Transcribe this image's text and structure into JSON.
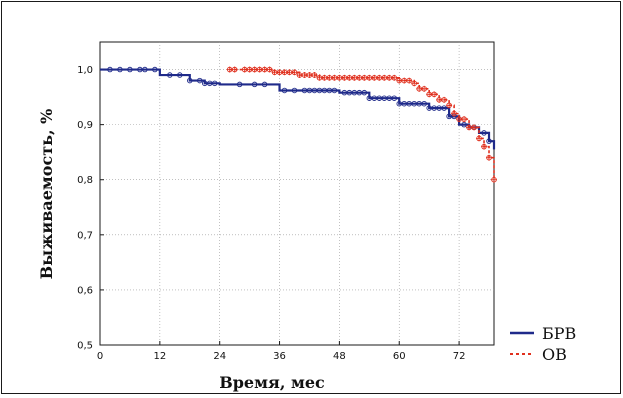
{
  "chart_data": {
    "type": "line",
    "title": "",
    "xlabel": "Время, мес",
    "ylabel": "Выживаемость, %",
    "xlim": [
      0,
      79
    ],
    "ylim": [
      0.5,
      1.05
    ],
    "x_ticks": [
      0,
      12,
      24,
      36,
      48,
      60,
      72
    ],
    "x_tick_labels": [
      "0",
      "12",
      "24",
      "36",
      "48",
      "60",
      "72"
    ],
    "y_ticks": [
      0.5,
      0.6,
      0.7,
      0.8,
      0.9,
      1.0
    ],
    "y_tick_labels": [
      "0,5",
      "0,6",
      "0,7",
      "0,8",
      "0,9",
      "1,0"
    ],
    "grid": true,
    "legend_position": "bottom-right-outside",
    "series": [
      {
        "name": "БРВ",
        "color": "#1f2a8a",
        "line_style": "solid",
        "marker": "open-circle",
        "steps": [
          [
            0,
            1.0
          ],
          [
            12,
            0.99
          ],
          [
            18,
            0.98
          ],
          [
            21,
            0.975
          ],
          [
            24,
            0.973
          ],
          [
            36,
            0.962
          ],
          [
            48,
            0.958
          ],
          [
            54,
            0.948
          ],
          [
            60,
            0.938
          ],
          [
            66,
            0.93
          ],
          [
            70,
            0.915
          ],
          [
            72,
            0.9
          ],
          [
            74,
            0.895
          ],
          [
            76,
            0.885
          ],
          [
            78,
            0.87
          ],
          [
            79,
            0.855
          ]
        ],
        "censor_x": [
          2,
          4,
          6,
          8,
          9,
          11,
          14,
          16,
          18,
          20,
          21,
          22,
          23,
          28,
          31,
          33,
          37,
          39,
          41,
          42,
          43,
          44,
          45,
          46,
          47,
          49,
          50,
          51,
          52,
          53,
          54,
          55,
          56,
          57,
          58,
          59,
          60,
          61,
          62,
          63,
          64,
          65,
          66,
          67,
          68,
          69,
          70,
          71,
          73,
          75,
          77,
          78
        ]
      },
      {
        "name": "ОВ",
        "color": "#e0301e",
        "line_style": "dashed",
        "marker": "open-circle-plus",
        "steps": [
          [
            26,
            1.0
          ],
          [
            35,
            0.995
          ],
          [
            40,
            0.99
          ],
          [
            44,
            0.985
          ],
          [
            60,
            0.98
          ],
          [
            63,
            0.975
          ],
          [
            64,
            0.965
          ],
          [
            66,
            0.955
          ],
          [
            68,
            0.945
          ],
          [
            70,
            0.935
          ],
          [
            71,
            0.92
          ],
          [
            72,
            0.91
          ],
          [
            74,
            0.895
          ],
          [
            76,
            0.875
          ],
          [
            77,
            0.86
          ],
          [
            78,
            0.84
          ],
          [
            79,
            0.8
          ]
        ],
        "censor_x": [
          26,
          27,
          29,
          30,
          31,
          32,
          33,
          34,
          35,
          36,
          37,
          38,
          39,
          40,
          41,
          42,
          43,
          44,
          45,
          46,
          47,
          48,
          49,
          50,
          51,
          52,
          53,
          54,
          55,
          56,
          57,
          58,
          59,
          60,
          61,
          62,
          63,
          64,
          65,
          66,
          67,
          68,
          69,
          70,
          71,
          72,
          73,
          74,
          75,
          76,
          77,
          78,
          79
        ]
      }
    ]
  }
}
